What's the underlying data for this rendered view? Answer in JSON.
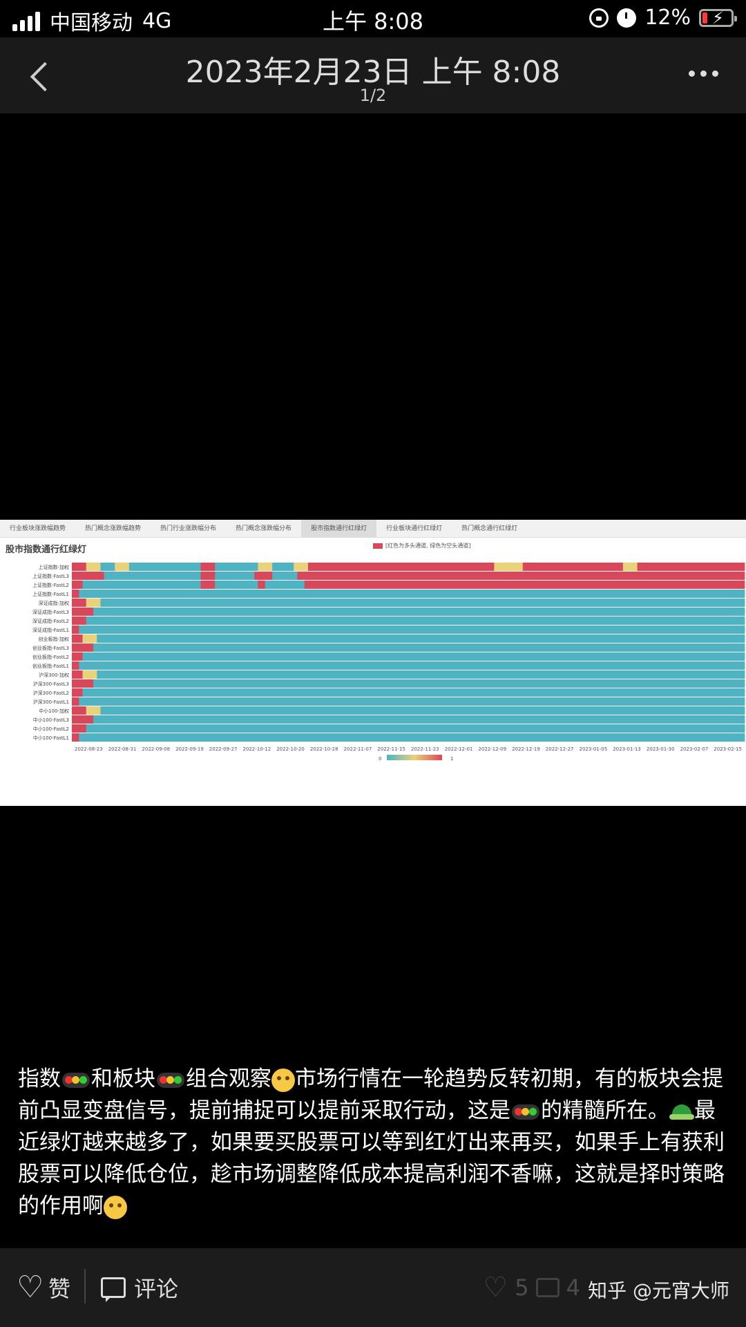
{
  "status_bar": {
    "carrier": "中国移动",
    "network": "4G",
    "time": "上午 8:08",
    "battery": "12%"
  },
  "title_bar": {
    "title": "2023年2月23日 上午 8:08",
    "page": "1/2"
  },
  "photo": {
    "tabs": [
      "行业板块涨跌幅趋势",
      "热门概念涨跌幅趋势",
      "热门行业涨跌幅分布",
      "热门概念涨跌幅分布",
      "股市指数通行红绿灯",
      "行业板块通行红绿灯",
      "热门概念通行红绿灯"
    ],
    "active_tab": 4,
    "title": "股市指数通行红绿灯",
    "legend_note": "[红色为多头通道, 绿色为空头通道]"
  },
  "chart_data": {
    "type": "heatmap",
    "title": "股市指数通行红绿灯",
    "rows": [
      "上证指数-加权",
      "上证指数-FastL3",
      "上证指数-FastL2",
      "上证指数-FastL1",
      "深证成指-加权",
      "深证成指-FastL3",
      "深证成指-FastL2",
      "深证成指-FastL1",
      "创业板指-加权",
      "创业板指-FastL3",
      "创业板指-FastL2",
      "创业板指-FastL1",
      "沪深300-加权",
      "沪深300-FastL3",
      "沪深300-FastL2",
      "沪深300-FastL1",
      "中小100-加权",
      "中小100-FastL3",
      "中小100-FastL2",
      "中小100-FastL1"
    ],
    "x_ticks": [
      "2022-08-23",
      "2022-08-31",
      "2022-09-08",
      "2022-09-19",
      "2022-09-27",
      "2022-10-12",
      "2022-10-20",
      "2022-10-28",
      "2022-11-07",
      "2022-11-15",
      "2022-11-23",
      "2022-12-01",
      "2022-12-09",
      "2022-12-19",
      "2022-12-27",
      "2023-01-05",
      "2023-01-13",
      "2023-01-30",
      "2023-02-07",
      "2023-02-15"
    ],
    "color_scale": {
      "min": 0,
      "max": 1,
      "low_color": "#4fb3c4",
      "mid_color": "#e8d27a",
      "high_color": "#d9485a"
    },
    "colorbar_labels": [
      "0",
      "1"
    ],
    "grid": [
      "11112222000022220000000000000000000011110000000000002222000000222211111111111111111111111111111111111111111111111111112222222211111111111111111111111111112222111111111111111111111111111111",
      "11111111100000000000000000000000000011110000000000011111000000011111111111111111111111111111111111111111111111111111111111111111111111111111111111111111111111111111111111111111111111111111",
      "11100000000000000000000000000000000011110000000000001100000000000111111111111111111111111111111111111111111111111111111111111111111111111111111111111111111111111111111111111111111111111111",
      "11000000000000000000000000000000000000000000000000000000000000000000000000000000000000000000000000000000000000000000000000000000000000000000000000000000000000000000000000000000000000000000",
      "11112222000000000000000000000000000000000000000000000000000000000000000000000000000000000000000000000000000000000000000000000000000000000000000000000000000000000000000000000000000000000000",
      "11111100000000000000000000000000000000000000000000000000000000000000000000000000000000000000000000000000000000000000000000000000000000000000000000000000000000000000000000000000000000000000",
      "11110000000000000000000000000000000000000000000000000000000000000000000000000000000000000000000000000000000000000000000000000000000000000000000000000000000000000000000000000000000000000000",
      "11000000000000000000000000000000000000000000000000000000000000000000000000000000000000000000000000000000000000000000000000000000000000000000000000000000000000000000000000000000000000000000",
      "11122220000000000000000000000000000000000000000000000000000000000000000000000000000000000000000000000000000000000000000000000000000000000000000000000000000000000000000000000000000000000000",
      "11111100000000000000000000000000000000000000000000000000000000000000000000000000000000000000000000000000000000000000000000000000000000000000000000000000000000000000000000000000000000000000",
      "11100000000000000000000000000000000000000000000000000000000000000000000000000000000000000000000000000000000000000000000000000000000000000000000000000000000000000000000000000000000000000000",
      "11000000000000000000000000000000000000000000000000000000000000000000000000000000000000000000000000000000000000000000000000000000000000000000000000000000000000000000000000000000000000000000",
      "11122220000000000000000000000000000000000000000000000000000000000000000000000000000000000000000000000000000000000000000000000000000000000000000000000000000000000000000000000000000000000000",
      "11111100000000000000000000000000000000000000000000000000000000000000000000000000000000000000000000000000000000000000000000000000000000000000000000000000000000000000000000000000000000000000",
      "11100000000000000000000000000000000000000000000000000000000000000000000000000000000000000000000000000000000000000000000000000000000000000000000000000000000000000000000000000000000000000000",
      "11000000000000000000000000000000000000000000000000000000000000000000000000000000000000000000000000000000000000000000000000000000000000000000000000000000000000000000000000000000000000000000",
      "11112222000000000000000000000000000000000000000000000000000000000000000000000000000000000000000000000000000000000000000000000000000000000000000000000000000000000000000000000000000000000000",
      "11111100000000000000000000000000000000000000000000000000000000000000000000000000000000000000000000000000000000000000000000000000000000000000000000000000000000000000000000000000000000000000",
      "11110000000000000000000000000000000000000000000000000000000000000000000000000000000000000000000000000000000000000000000000000000000000000000000000000000000000000000000000000000000000000000",
      "11000000000000000000000000000000000000000000000000000000000000000000000000000000000000000000000000000000000000000000000000000000000000000000000000000000000000000000000000000000000000000000"
    ]
  },
  "post": {
    "p1": "指数",
    "p2": "和板块",
    "p3": "组合观察",
    "p4": "市场行情在一轮趋势反转初期，有的板块会提前凸显变盘信号，提前捕捉可以提前采取行动，这是",
    "p5": "的精髓所在。",
    "p6": "最近绿灯越来越多了，如果要买股票可以等到红灯出来再买，如果手上有获利股票可以降低仓位，趁市场调整降低成本提高利润不香嘛，这就是择时策略的作用啊"
  },
  "bottom_bar": {
    "like_label": "赞",
    "comment_label": "评论",
    "like_count": "5",
    "comment_count": "4",
    "watermark": "知乎 @元宵大师"
  }
}
